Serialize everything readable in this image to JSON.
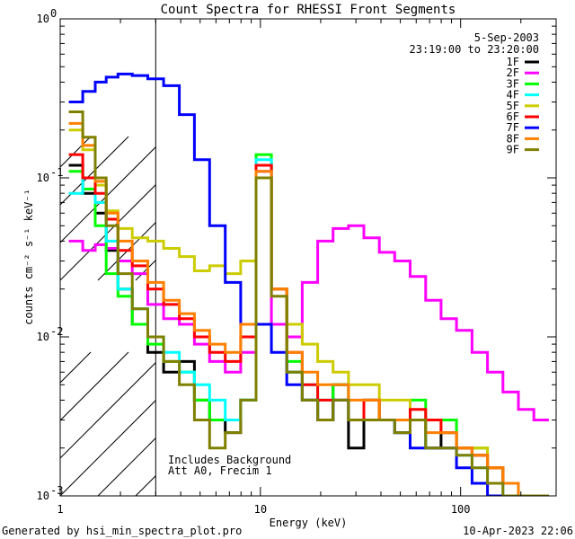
{
  "chart_data": {
    "type": "line",
    "title": "Count Spectra for RHESSI Front Segments",
    "xlabel": "Energy (keV)",
    "ylabel": "counts cm⁻² s⁻¹ keV⁻¹",
    "xscale": "log",
    "yscale": "log",
    "xlim": [
      1,
      300
    ],
    "ylim": [
      0.001,
      1
    ],
    "x_ticks": [
      {
        "value": 1,
        "label": "1"
      },
      {
        "value": 10,
        "label": "10"
      },
      {
        "value": 100,
        "label": "100"
      }
    ],
    "y_ticks": [
      {
        "value": 1,
        "base": "10",
        "exp": "0"
      },
      {
        "value": 0.1,
        "base": "10",
        "exp": "-1"
      },
      {
        "value": 0.01,
        "base": "10",
        "exp": "-2"
      },
      {
        "value": 0.001,
        "base": "10",
        "exp": "-3"
      }
    ],
    "date": "5-Sep-2003",
    "time_range": "23:19:00 to 23:20:00",
    "annotation_lines": [
      "Includes Background",
      "Att A0, Frecim 1"
    ],
    "shaded_region_max_keV": 3,
    "series": [
      {
        "name": "1F",
        "color": "#000000",
        "x": [
          1.2,
          1.4,
          1.6,
          1.8,
          2.1,
          2.5,
          3.0,
          3.6,
          4.3,
          5.1,
          6.1,
          7.3,
          8.7,
          10.4,
          12.4,
          14.8,
          17.7,
          21.1,
          25.2,
          30.1,
          35.9,
          42.9,
          51.2,
          61.2,
          73.1,
          87.3,
          104.3,
          124.6,
          148.9,
          177.9,
          212.5,
          253.9
        ],
        "values": [
          0.12,
          0.08,
          0.06,
          0.035,
          0.02,
          0.012,
          0.008,
          0.006,
          0.007,
          0.004,
          0.003,
          0.0025,
          0.004,
          0.12,
          0.02,
          0.006,
          0.004,
          0.003,
          0.005,
          0.002,
          0.004,
          0.003,
          0.0025,
          0.003,
          0.002,
          0.0025,
          0.002,
          0.0018,
          0.0015,
          0.0012,
          0.001,
          0.001
        ]
      },
      {
        "name": "2F",
        "color": "#ff00ff",
        "x": [
          1.2,
          1.4,
          1.6,
          1.8,
          2.1,
          2.5,
          3.0,
          3.6,
          4.3,
          5.1,
          6.1,
          7.3,
          8.7,
          10.4,
          12.4,
          14.8,
          17.7,
          21.1,
          25.2,
          30.1,
          35.9,
          42.9,
          51.2,
          61.2,
          73.1,
          87.3,
          104.3,
          124.6,
          148.9,
          177.9,
          212.5,
          253.9
        ],
        "values": [
          0.04,
          0.035,
          0.038,
          0.036,
          0.03,
          0.025,
          0.016,
          0.013,
          0.012,
          0.009,
          0.007,
          0.006,
          0.008,
          0.11,
          0.012,
          0.01,
          0.022,
          0.04,
          0.048,
          0.05,
          0.042,
          0.034,
          0.03,
          0.024,
          0.017,
          0.013,
          0.011,
          0.008,
          0.006,
          0.0045,
          0.0035,
          0.003
        ]
      },
      {
        "name": "3F",
        "color": "#00ff00",
        "x": [
          1.2,
          1.4,
          1.6,
          1.8,
          2.1,
          2.5,
          3.0,
          3.6,
          4.3,
          5.1,
          6.1,
          7.3,
          8.7,
          10.4,
          12.4,
          14.8,
          17.7,
          21.1,
          25.2,
          30.1,
          35.9,
          42.9,
          51.2,
          61.2,
          73.1,
          87.3,
          104.3,
          124.6,
          148.9,
          177.9,
          212.5,
          253.9
        ],
        "values": [
          0.11,
          0.085,
          0.05,
          0.025,
          0.018,
          0.012,
          0.009,
          0.007,
          0.006,
          0.004,
          0.003,
          0.003,
          0.004,
          0.14,
          0.02,
          0.007,
          0.004,
          0.003,
          0.005,
          0.003,
          0.004,
          0.003,
          0.003,
          0.004,
          0.003,
          0.003,
          0.002,
          0.002,
          0.0015,
          0.0012,
          0.001,
          0.001
        ]
      },
      {
        "name": "4F",
        "color": "#00ffff",
        "x": [
          1.2,
          1.4,
          1.6,
          1.8,
          2.1,
          2.5,
          3.0,
          3.6,
          4.3,
          5.1,
          6.1,
          7.3,
          8.7,
          10.4,
          12.4,
          14.8,
          17.7,
          21.1,
          25.2,
          30.1,
          35.9,
          42.9,
          51.2,
          61.2,
          73.1,
          87.3,
          104.3,
          124.6,
          148.9,
          177.9,
          212.5,
          253.9
        ],
        "values": [
          0.08,
          0.1,
          0.07,
          0.04,
          0.02,
          0.015,
          0.01,
          0.008,
          0.006,
          0.005,
          0.004,
          0.003,
          0.004,
          0.13,
          0.02,
          0.006,
          0.005,
          0.004,
          0.004,
          0.003,
          0.003,
          0.003,
          0.0025,
          0.003,
          0.002,
          0.002,
          0.0018,
          0.0015,
          0.0012,
          0.001,
          0.001,
          0.001
        ]
      },
      {
        "name": "5F",
        "color": "#cccc00",
        "x": [
          1.2,
          1.4,
          1.6,
          1.8,
          2.1,
          2.5,
          3.0,
          3.6,
          4.3,
          5.1,
          6.1,
          7.3,
          8.7,
          10.4,
          12.4,
          14.8,
          17.7,
          21.1,
          25.2,
          30.1,
          35.9,
          42.9,
          51.2,
          61.2,
          73.1,
          87.3,
          104.3,
          124.6,
          148.9,
          177.9,
          212.5,
          253.9
        ],
        "values": [
          0.2,
          0.15,
          0.09,
          0.062,
          0.048,
          0.042,
          0.04,
          0.036,
          0.032,
          0.026,
          0.028,
          0.025,
          0.03,
          0.1,
          0.02,
          0.012,
          0.009,
          0.007,
          0.006,
          0.005,
          0.005,
          0.004,
          0.004,
          0.003,
          0.003,
          0.0025,
          0.002,
          0.002,
          0.0015,
          0.0012,
          0.001,
          0.001
        ]
      },
      {
        "name": "6F",
        "color": "#ff0000",
        "x": [
          1.2,
          1.4,
          1.6,
          1.8,
          2.1,
          2.5,
          3.0,
          3.6,
          4.3,
          5.1,
          6.1,
          7.3,
          8.7,
          10.4,
          12.4,
          14.8,
          17.7,
          21.1,
          25.2,
          30.1,
          35.9,
          42.9,
          51.2,
          61.2,
          73.1,
          87.3,
          104.3,
          124.6,
          148.9,
          177.9,
          212.5,
          253.9
        ],
        "values": [
          0.14,
          0.1,
          0.08,
          0.055,
          0.035,
          0.028,
          0.02,
          0.016,
          0.013,
          0.01,
          0.008,
          0.007,
          0.01,
          0.12,
          0.02,
          0.008,
          0.005,
          0.004,
          0.004,
          0.003,
          0.004,
          0.003,
          0.003,
          0.0035,
          0.003,
          0.0025,
          0.002,
          0.0018,
          0.0015,
          0.0012,
          0.001,
          0.001
        ]
      },
      {
        "name": "7F",
        "color": "#0000ff",
        "x": [
          1.2,
          1.4,
          1.6,
          1.8,
          2.1,
          2.5,
          3.0,
          3.6,
          4.3,
          5.1,
          6.1,
          7.3,
          8.7,
          10.4,
          12.4,
          14.8,
          17.7,
          21.1,
          25.2,
          30.1,
          35.9,
          42.9,
          51.2,
          61.2,
          73.1,
          87.3,
          104.3,
          124.6,
          148.9,
          177.9,
          212.5,
          253.9
        ],
        "values": [
          0.3,
          0.35,
          0.4,
          0.43,
          0.45,
          0.44,
          0.42,
          0.38,
          0.25,
          0.13,
          0.05,
          0.022,
          0.012,
          0.012,
          0.008,
          0.005,
          0.004,
          0.003,
          0.004,
          0.003,
          0.003,
          0.003,
          0.0025,
          0.002,
          0.002,
          0.002,
          0.0015,
          0.0012,
          0.001,
          0.001,
          0.001,
          0.001
        ]
      },
      {
        "name": "8F",
        "color": "#ff8000",
        "x": [
          1.2,
          1.4,
          1.6,
          1.8,
          2.1,
          2.5,
          3.0,
          3.6,
          4.3,
          5.1,
          6.1,
          7.3,
          8.7,
          10.4,
          12.4,
          14.8,
          17.7,
          21.1,
          25.2,
          30.1,
          35.9,
          42.9,
          51.2,
          61.2,
          73.1,
          87.3,
          104.3,
          124.6,
          148.9,
          177.9,
          212.5,
          253.9
        ],
        "values": [
          0.22,
          0.16,
          0.095,
          0.06,
          0.04,
          0.03,
          0.022,
          0.017,
          0.014,
          0.011,
          0.009,
          0.008,
          0.012,
          0.11,
          0.02,
          0.008,
          0.006,
          0.005,
          0.005,
          0.004,
          0.004,
          0.003,
          0.003,
          0.003,
          0.0025,
          0.0025,
          0.002,
          0.0018,
          0.0015,
          0.0012,
          0.001,
          0.001
        ]
      },
      {
        "name": "9F",
        "color": "#808000",
        "x": [
          1.2,
          1.4,
          1.6,
          1.8,
          2.1,
          2.5,
          3.0,
          3.6,
          4.3,
          5.1,
          6.1,
          7.3,
          8.7,
          10.4,
          12.4,
          14.8,
          17.7,
          21.1,
          25.2,
          30.1,
          35.9,
          42.9,
          51.2,
          61.2,
          73.1,
          87.3,
          104.3,
          124.6,
          148.9,
          177.9,
          212.5,
          253.9
        ],
        "values": [
          0.26,
          0.18,
          0.1,
          0.05,
          0.025,
          0.015,
          0.01,
          0.007,
          0.005,
          0.003,
          0.002,
          0.0025,
          0.004,
          0.1,
          0.018,
          0.006,
          0.004,
          0.003,
          0.004,
          0.003,
          0.003,
          0.003,
          0.0025,
          0.003,
          0.002,
          0.002,
          0.0018,
          0.0015,
          0.0012,
          0.001,
          0.001,
          0.001
        ]
      }
    ]
  },
  "footer": {
    "generated_by": "Generated by hsi_min_spectra_plot.pro",
    "timestamp": "10-Apr-2023 22:06"
  }
}
